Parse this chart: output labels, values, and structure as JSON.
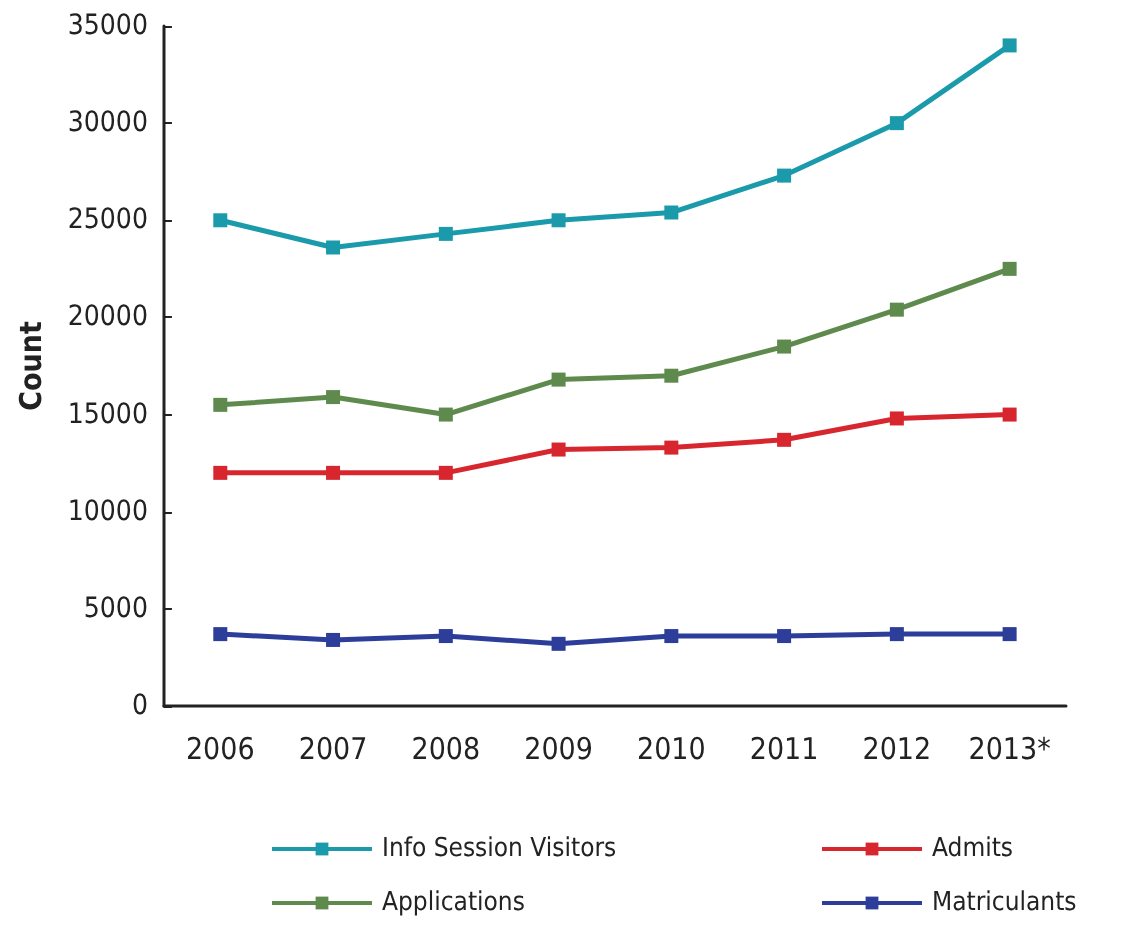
{
  "chart_data": {
    "type": "line",
    "ylabel": "Count",
    "categories": [
      "2006",
      "2007",
      "2008",
      "2009",
      "2010",
      "2011",
      "2012",
      "2013*"
    ],
    "series": [
      {
        "name": "Info Session Visitors",
        "color": "#1a9aaa",
        "values": [
          25000,
          23600,
          24300,
          25000,
          25400,
          27300,
          30000,
          34000
        ]
      },
      {
        "name": "Applications",
        "color": "#5f8a4e",
        "values": [
          15500,
          15900,
          15000,
          16800,
          17000,
          18500,
          20400,
          22500
        ]
      },
      {
        "name": "Admits",
        "color": "#d7262e",
        "values": [
          12000,
          12000,
          12000,
          13200,
          13300,
          13700,
          14800,
          15000
        ]
      },
      {
        "name": "Matriculants",
        "color": "#2c3e99",
        "values": [
          3700,
          3400,
          3600,
          3200,
          3600,
          3600,
          3700,
          3700
        ]
      }
    ],
    "ylim": [
      0,
      35000
    ],
    "yticks": [
      0,
      5000,
      10000,
      15000,
      20000,
      25000,
      30000,
      35000
    ],
    "grid": false,
    "legend": "bottom",
    "marker": "square",
    "line_style": "solid"
  }
}
